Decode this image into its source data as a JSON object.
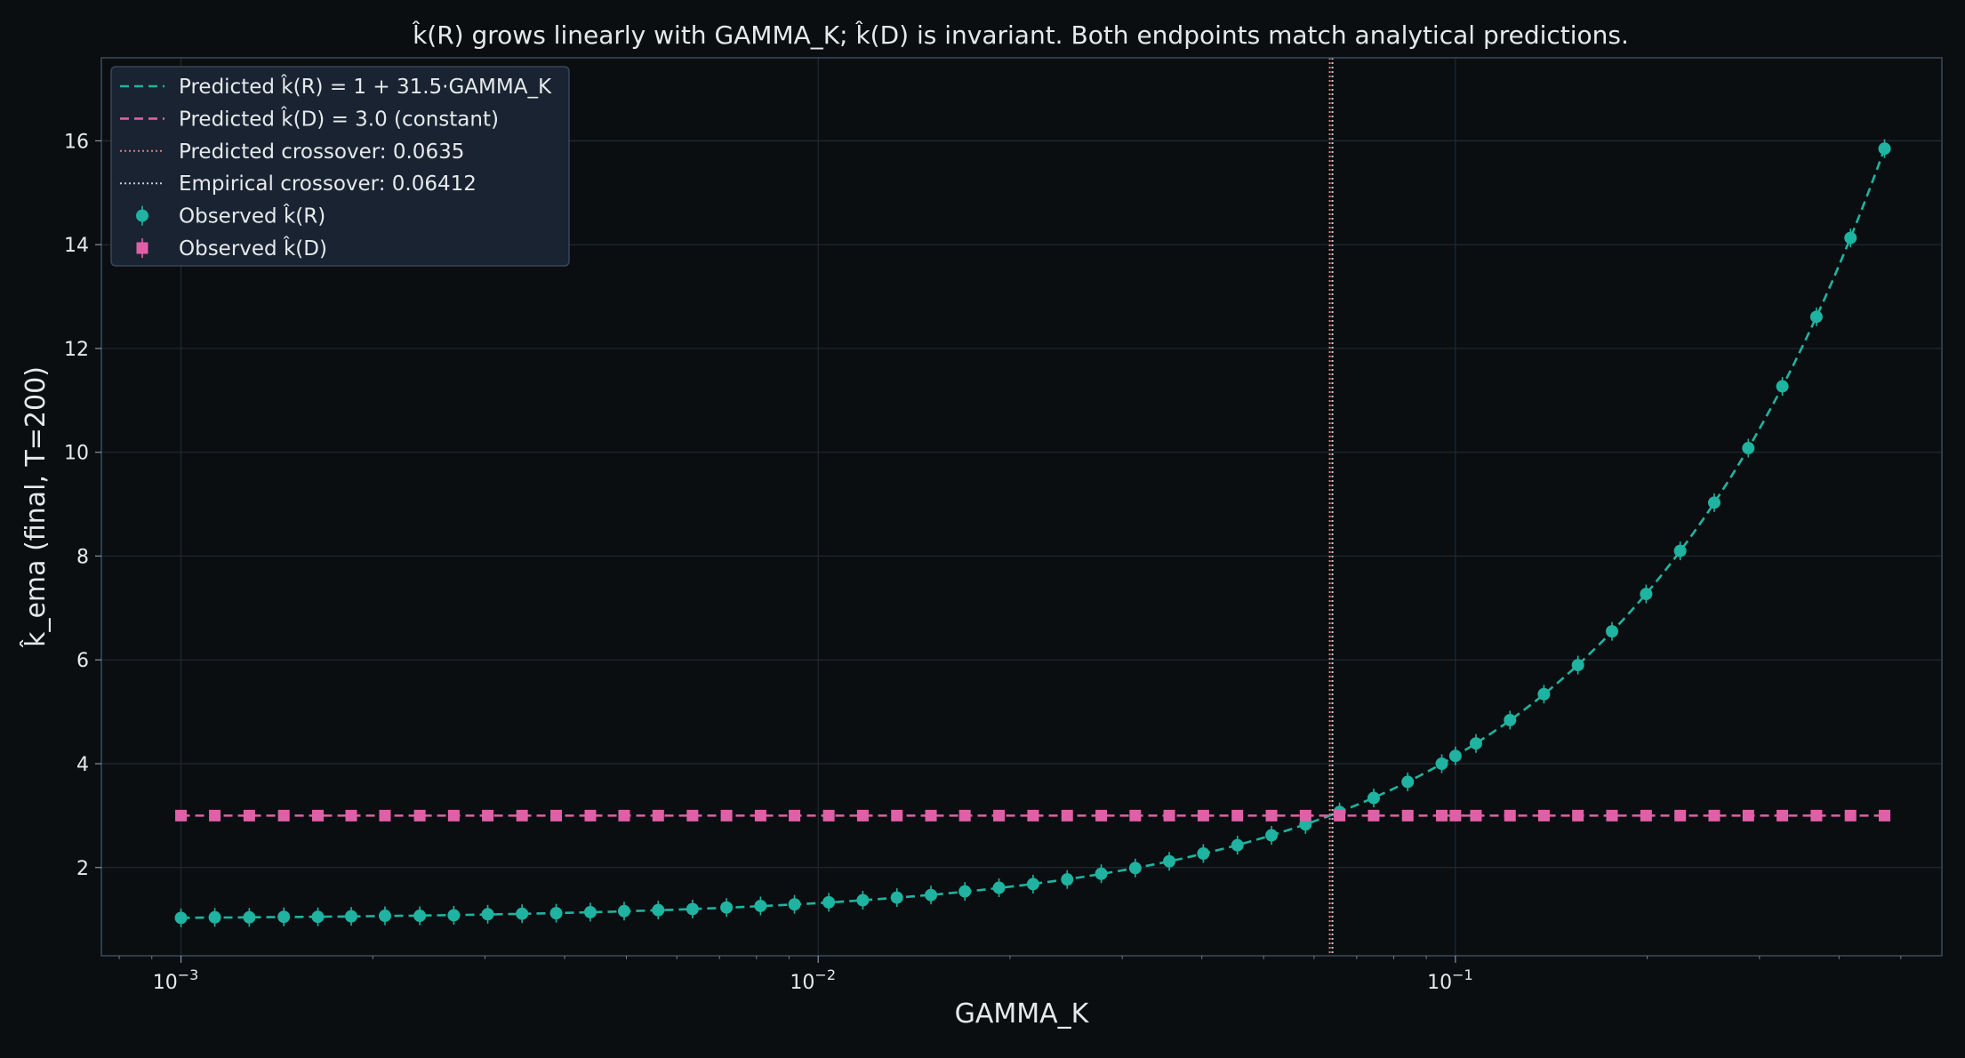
{
  "chart_data": {
    "type": "line",
    "title": "k̂(R) grows linearly with GAMMA_K; k̂(D) is invariant. Both endpoints match analytical predictions.",
    "xlabel": "GAMMA_K",
    "ylabel": "k̂_ema (final, T=200)",
    "xscale": "log",
    "xlim": [
      0.00075,
      0.58
    ],
    "ylim": [
      0.3,
      17.6
    ],
    "x_ticks": [
      {
        "value": 0.001,
        "base": "10",
        "exp": "−3"
      },
      {
        "value": 0.01,
        "base": "10",
        "exp": "−2"
      },
      {
        "value": 0.1,
        "base": "10",
        "exp": "−1"
      }
    ],
    "y_ticks": [
      2,
      4,
      6,
      8,
      10,
      12,
      14,
      16
    ],
    "grid": true,
    "legend_position": "top-left",
    "legend": [
      {
        "label": "Predicted k̂(R) = 1 + 31.5·GAMMA_K",
        "style": "dashed",
        "color": "#1fb3a1"
      },
      {
        "label": "Predicted k̂(D) = 3.0 (constant)",
        "style": "dashed",
        "color": "#e060a8"
      },
      {
        "label": "Predicted crossover: 0.0635",
        "style": "dotted",
        "color": "#e07a80"
      },
      {
        "label": "Empirical crossover: 0.06412",
        "style": "dotted",
        "color": "#c8cdd2"
      },
      {
        "label": "Observed k̂(R)",
        "style": "marker-circle",
        "color": "#1fb3a1"
      },
      {
        "label": "Observed k̂(D)",
        "style": "marker-square",
        "color": "#e060a8"
      }
    ],
    "series": [
      {
        "name": "Predicted k̂(R) = 1 + 31.5·GAMMA_K",
        "kind": "line",
        "slope": 31.5,
        "intercept": 1,
        "color": "#1fb3a1"
      },
      {
        "name": "Predicted k̂(D) = 3.0 (constant)",
        "kind": "hline",
        "value": 3.0,
        "color": "#e060a8"
      },
      {
        "name": "Observed k̂(R)",
        "kind": "points",
        "marker": "circle",
        "color": "#1fb3a1",
        "x": [
          0.001,
          0.00113,
          0.00128,
          0.00145,
          0.00164,
          0.00185,
          0.00209,
          0.00237,
          0.00268,
          0.00303,
          0.00343,
          0.00388,
          0.00439,
          0.00496,
          0.00561,
          0.00635,
          0.00718,
          0.00812,
          0.00918,
          0.01039,
          0.01175,
          0.01329,
          0.01503,
          0.01699,
          0.01922,
          0.02174,
          0.02459,
          0.02781,
          0.03145,
          0.03556,
          0.04022,
          0.04549,
          0.05145,
          0.05818,
          0.0658,
          0.07443,
          0.08417,
          0.09519,
          0.1,
          0.1077,
          0.1218,
          0.1377,
          0.1557,
          0.1761,
          0.1992,
          0.2253,
          0.2548,
          0.2882,
          0.3259,
          0.3686,
          0.4169,
          0.4715
        ],
        "y": [
          1.03,
          1.04,
          1.04,
          1.05,
          1.05,
          1.06,
          1.07,
          1.07,
          1.08,
          1.1,
          1.11,
          1.12,
          1.14,
          1.16,
          1.18,
          1.2,
          1.23,
          1.26,
          1.29,
          1.33,
          1.37,
          1.42,
          1.47,
          1.54,
          1.61,
          1.68,
          1.77,
          1.88,
          1.99,
          2.12,
          2.27,
          2.43,
          2.62,
          2.83,
          3.07,
          3.34,
          3.65,
          4.0,
          4.15,
          4.39,
          4.84,
          5.34,
          5.9,
          6.55,
          7.27,
          8.1,
          9.03,
          10.08,
          11.27,
          12.61,
          14.13,
          15.85
        ],
        "error": 0.18
      },
      {
        "name": "Observed k̂(D)",
        "kind": "points",
        "marker": "square",
        "color": "#e060a8",
        "x": [
          0.001,
          0.00113,
          0.00128,
          0.00145,
          0.00164,
          0.00185,
          0.00209,
          0.00237,
          0.00268,
          0.00303,
          0.00343,
          0.00388,
          0.00439,
          0.00496,
          0.00561,
          0.00635,
          0.00718,
          0.00812,
          0.00918,
          0.01039,
          0.01175,
          0.01329,
          0.01503,
          0.01699,
          0.01922,
          0.02174,
          0.02459,
          0.02781,
          0.03145,
          0.03556,
          0.04022,
          0.04549,
          0.05145,
          0.05818,
          0.0658,
          0.07443,
          0.08417,
          0.09519,
          0.1,
          0.1077,
          0.1218,
          0.1377,
          0.1557,
          0.1761,
          0.1992,
          0.2253,
          0.2548,
          0.2882,
          0.3259,
          0.3686,
          0.4169,
          0.4715
        ],
        "y": [
          3.0,
          3.0,
          3.0,
          3.0,
          3.0,
          3.0,
          3.0,
          3.0,
          3.0,
          3.0,
          3.0,
          3.0,
          3.0,
          3.0,
          3.0,
          3.0,
          3.0,
          3.0,
          3.0,
          3.0,
          3.0,
          3.0,
          3.0,
          3.0,
          3.0,
          3.0,
          3.0,
          3.0,
          3.0,
          3.0,
          3.0,
          3.0,
          3.0,
          3.0,
          3.0,
          3.0,
          3.0,
          3.0,
          3.0,
          3.0,
          3.0,
          3.0,
          3.0,
          3.0,
          3.0,
          3.0,
          3.0,
          3.0,
          3.0,
          3.0,
          3.0,
          3.0
        ]
      },
      {
        "name": "Predicted crossover: 0.0635",
        "kind": "vline",
        "value": 0.0635,
        "color": "#e07a80"
      },
      {
        "name": "Empirical crossover: 0.06412",
        "kind": "vline",
        "value": 0.06412,
        "color": "#c8cdd2"
      }
    ]
  }
}
